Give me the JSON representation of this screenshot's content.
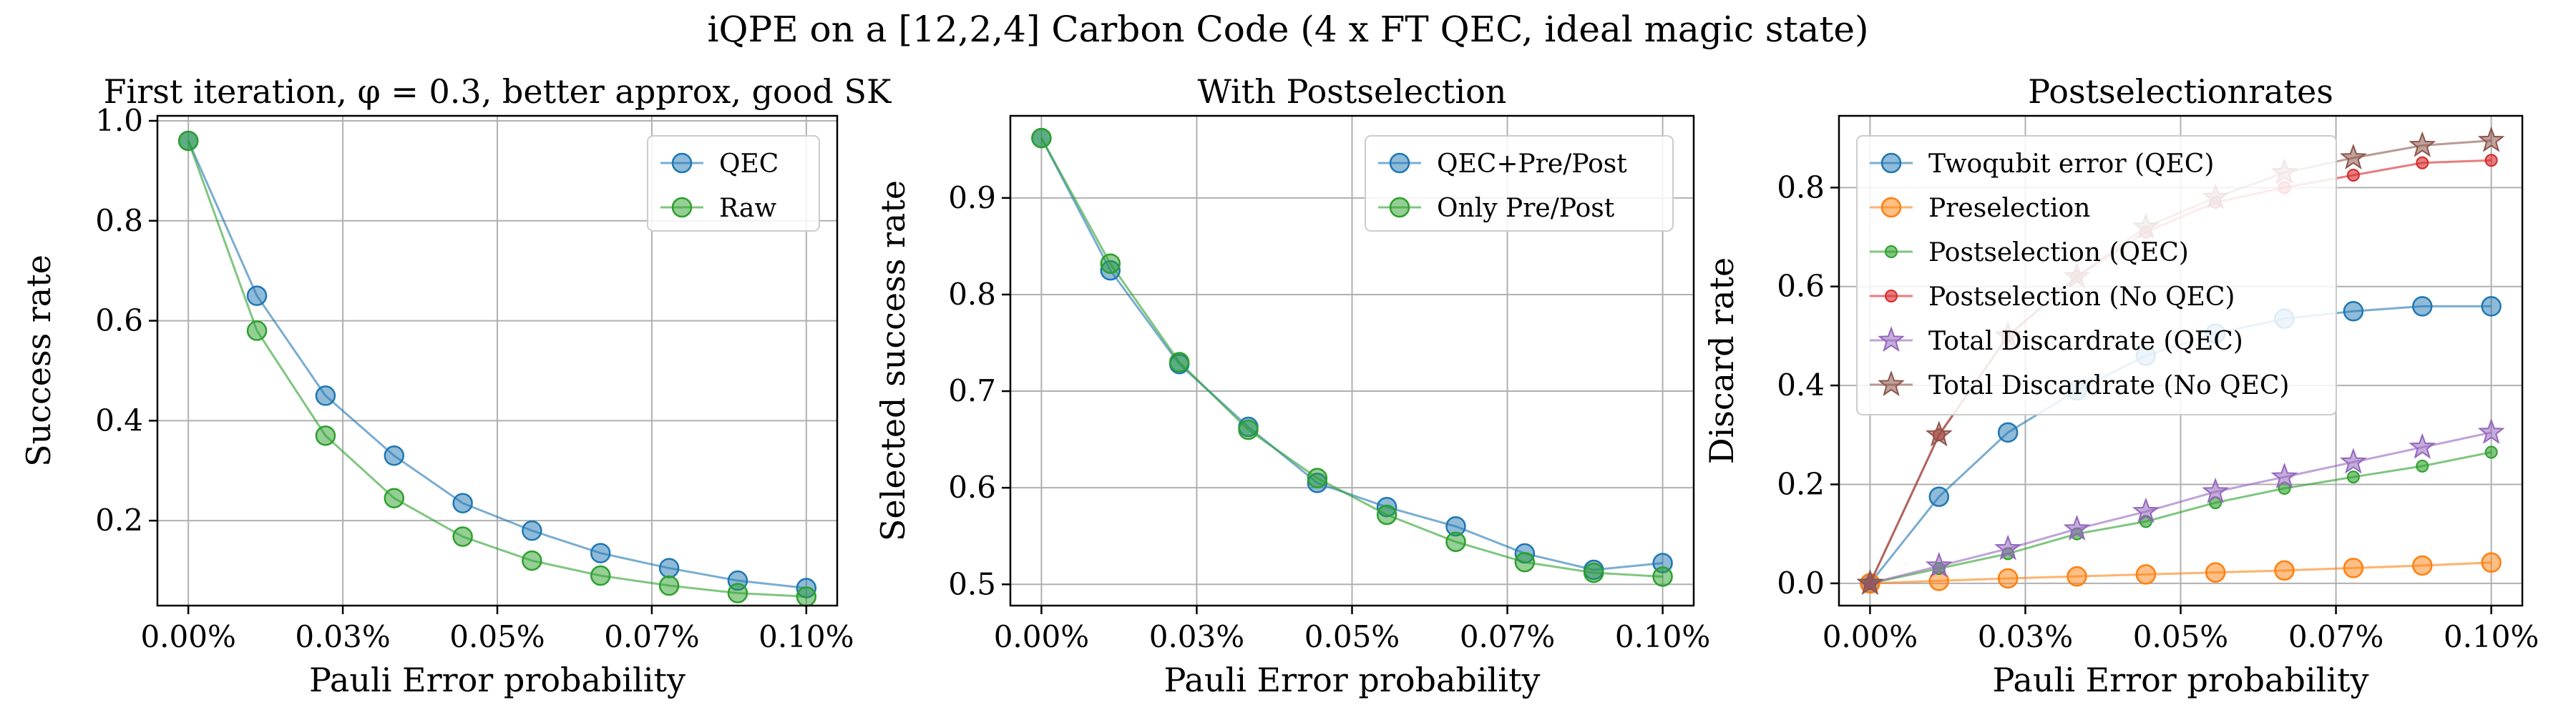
{
  "figure_title": "iQPE on a [12,2,4] Carbon Code (4 x FT QEC, ideal magic state)",
  "chart_data": [
    {
      "type": "line",
      "title": "First iteration, φ = 0.3, better approx, good SK",
      "xlabel": "Pauli Error probability",
      "ylabel": "Success rate",
      "xlim": [
        -5e-05,
        0.00105
      ],
      "ylim": [
        0.03,
        1.01
      ],
      "xticks": [
        0,
        0.00025,
        0.0005,
        0.00075,
        0.001
      ],
      "xtick_labels": [
        "0.00%",
        "0.03%",
        "0.05%",
        "0.07%",
        "0.10%"
      ],
      "yticks": [
        0.2,
        0.4,
        0.6,
        0.8,
        1.0
      ],
      "ytick_labels": [
        "0.2",
        "0.4",
        "0.6",
        "0.8",
        "1.0"
      ],
      "grid": true,
      "legend": "upper right",
      "x": [
        0,
        0.000111,
        0.000222,
        0.000333,
        0.000444,
        0.000556,
        0.000667,
        0.000778,
        0.000889,
        0.001
      ],
      "series": [
        {
          "name": "QEC",
          "color": "#1f77b4",
          "marker": "circle",
          "values": [
            0.96,
            0.65,
            0.45,
            0.33,
            0.235,
            0.18,
            0.135,
            0.105,
            0.08,
            0.065
          ]
        },
        {
          "name": "Raw",
          "color": "#2ca02c",
          "marker": "circle",
          "values": [
            0.96,
            0.58,
            0.37,
            0.245,
            0.168,
            0.12,
            0.09,
            0.07,
            0.055,
            0.048
          ]
        }
      ]
    },
    {
      "type": "line",
      "title": "With Postselection",
      "xlabel": "Pauli Error probability",
      "ylabel": "Selected success rate",
      "xlim": [
        -5e-05,
        0.00105
      ],
      "ylim": [
        0.478,
        0.985
      ],
      "xticks": [
        0,
        0.00025,
        0.0005,
        0.00075,
        0.001
      ],
      "xtick_labels": [
        "0.00%",
        "0.03%",
        "0.05%",
        "0.07%",
        "0.10%"
      ],
      "yticks": [
        0.5,
        0.6,
        0.7,
        0.8,
        0.9
      ],
      "ytick_labels": [
        "0.5",
        "0.6",
        "0.7",
        "0.8",
        "0.9"
      ],
      "grid": true,
      "legend": "upper right",
      "x": [
        0,
        0.000111,
        0.000222,
        0.000333,
        0.000444,
        0.000556,
        0.000667,
        0.000778,
        0.000889,
        0.001
      ],
      "series": [
        {
          "name": "QEC+Pre/Post",
          "color": "#1f77b4",
          "marker": "circle",
          "values": [
            0.962,
            0.825,
            0.728,
            0.663,
            0.605,
            0.58,
            0.56,
            0.532,
            0.515,
            0.522
          ]
        },
        {
          "name": "Only Pre/Post",
          "color": "#2ca02c",
          "marker": "circle",
          "values": [
            0.962,
            0.832,
            0.73,
            0.66,
            0.61,
            0.572,
            0.544,
            0.523,
            0.512,
            0.508
          ]
        }
      ]
    },
    {
      "type": "line",
      "title": "Postselectionrates",
      "xlabel": "Pauli Error probability",
      "ylabel": "Discard rate",
      "xlim": [
        -5e-05,
        0.00105
      ],
      "ylim": [
        -0.045,
        0.945
      ],
      "xticks": [
        0,
        0.00025,
        0.0005,
        0.00075,
        0.001
      ],
      "xtick_labels": [
        "0.00%",
        "0.03%",
        "0.05%",
        "0.07%",
        "0.10%"
      ],
      "yticks": [
        0.0,
        0.2,
        0.4,
        0.6,
        0.8
      ],
      "ytick_labels": [
        "0.0",
        "0.2",
        "0.4",
        "0.6",
        "0.8"
      ],
      "grid": true,
      "legend": "upper left",
      "x": [
        0,
        0.000111,
        0.000222,
        0.000333,
        0.000444,
        0.000556,
        0.000667,
        0.000778,
        0.000889,
        0.001
      ],
      "series": [
        {
          "name": "Twoqubit error (QEC)",
          "color": "#1f77b4",
          "marker": "circle",
          "values": [
            0.0,
            0.175,
            0.305,
            0.39,
            0.46,
            0.505,
            0.535,
            0.55,
            0.56,
            0.56
          ]
        },
        {
          "name": "Preselection",
          "color": "#ff7f0e",
          "marker": "circle",
          "values": [
            0.0,
            0.005,
            0.01,
            0.014,
            0.018,
            0.022,
            0.026,
            0.031,
            0.036,
            0.042
          ]
        },
        {
          "name": "Postselection (QEC)",
          "color": "#2ca02c",
          "marker": "dot",
          "values": [
            0.0,
            0.03,
            0.06,
            0.1,
            0.125,
            0.163,
            0.192,
            0.215,
            0.237,
            0.265
          ]
        },
        {
          "name": "Postselection (No QEC)",
          "color": "#d62728",
          "marker": "dot",
          "values": [
            0.0,
            0.3,
            0.5,
            0.62,
            0.71,
            0.77,
            0.8,
            0.825,
            0.85,
            0.855
          ]
        },
        {
          "name": "Total Discardrate (QEC)",
          "color": "#9467bd",
          "marker": "star",
          "values": [
            0.0,
            0.035,
            0.07,
            0.11,
            0.145,
            0.185,
            0.215,
            0.245,
            0.275,
            0.305
          ]
        },
        {
          "name": "Total Discardrate (No QEC)",
          "color": "#8c564b",
          "marker": "star",
          "values": [
            0.0,
            0.3,
            0.5,
            0.62,
            0.72,
            0.78,
            0.83,
            0.86,
            0.885,
            0.895
          ]
        }
      ]
    }
  ]
}
